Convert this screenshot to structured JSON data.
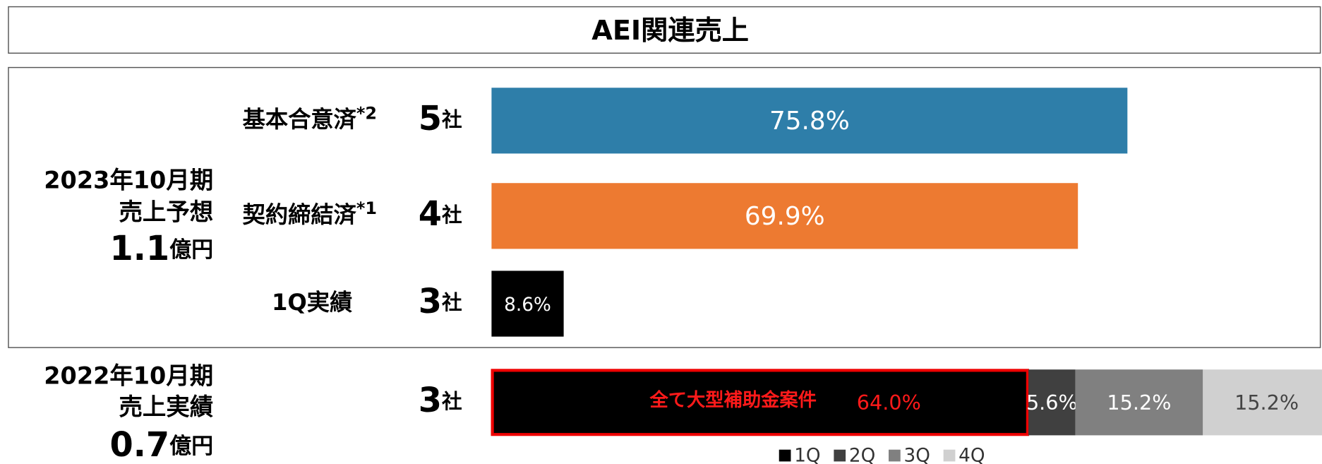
{
  "header": {
    "title": "AEI関連売上"
  },
  "chart_data": {
    "type": "bar",
    "orientation": "horizontal",
    "xlim": [
      0,
      100
    ],
    "groups": [
      {
        "period": "2023年10月期",
        "label": "売上予想",
        "amount": "1.1",
        "unit": "億円"
      },
      {
        "period": "2022年10月期",
        "label": "売上実績",
        "amount": "0.7",
        "unit": "億円"
      }
    ],
    "rows": [
      {
        "name": "基本合意済",
        "note": "*2",
        "count": "5",
        "count_unit": "社",
        "value": 75.8,
        "value_label": "75.8%",
        "color": "#2e7ea9"
      },
      {
        "name": "契約締結済",
        "note": "*1",
        "count": "4",
        "count_unit": "社",
        "value": 69.9,
        "value_label": "69.9%",
        "color": "#ed7a31"
      },
      {
        "name": "1Q実績",
        "count": "3",
        "count_unit": "社",
        "value": 8.6,
        "value_label": "8.6%",
        "color": "#000000"
      }
    ],
    "stacked": {
      "count": "3",
      "count_unit": "社",
      "annotation": "全て大型補助金案件",
      "series": [
        {
          "name": "1Q",
          "color": "#000000",
          "values": [
            64.0
          ],
          "value_labels": [
            "64.0%"
          ]
        },
        {
          "name": "2Q",
          "color": "#404040",
          "values": [
            5.6
          ],
          "value_labels": [
            "5.6%"
          ]
        },
        {
          "name": "3Q",
          "color": "#808080",
          "values": [
            15.2
          ],
          "value_labels": [
            "15.2%"
          ]
        },
        {
          "name": "4Q",
          "color": "#d0d0d0",
          "values": [
            15.2
          ],
          "value_labels": [
            "15.2%"
          ]
        }
      ]
    }
  }
}
